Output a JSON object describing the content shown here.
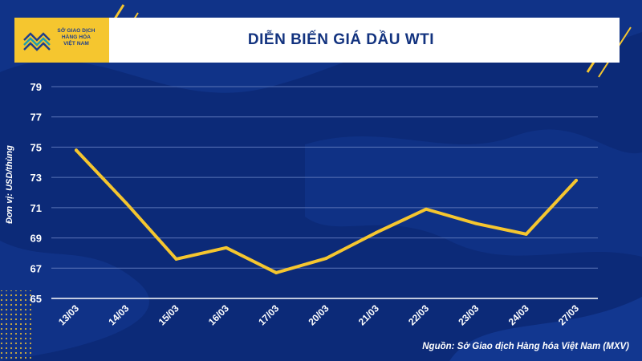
{
  "header": {
    "logo_lines": [
      "SỞ GIAO DỊCH",
      "HÀNG HÓA",
      "VIỆT NAM"
    ],
    "title": "DIỄN BIẾN GIÁ DẦU WTI"
  },
  "source": "Nguồn: Sở Giao dịch Hàng hóa Việt Nam (MXV)",
  "colors": {
    "background": "#0c2a78",
    "accent": "#f5c62f",
    "line": "#f5c62f",
    "grid": "#5a74b8"
  },
  "chart_data": {
    "type": "line",
    "title": "DIỄN BIẾN GIÁ DẦU WTI",
    "xlabel": "",
    "ylabel": "Đơn vị: USD/thùng",
    "categories": [
      "13/03",
      "14/03",
      "15/03",
      "16/03",
      "17/03",
      "20/03",
      "21/03",
      "22/03",
      "23/03",
      "24/03",
      "27/03"
    ],
    "series": [
      {
        "values": [
          74.8,
          71.3,
          67.6,
          68.35,
          66.7,
          67.65,
          69.35,
          70.9,
          69.95,
          69.25,
          72.8
        ]
      }
    ],
    "ylim": [
      65,
      79
    ],
    "yticks": [
      65,
      67,
      69,
      71,
      73,
      75,
      77,
      79
    ],
    "grid": true,
    "legend": "none"
  }
}
